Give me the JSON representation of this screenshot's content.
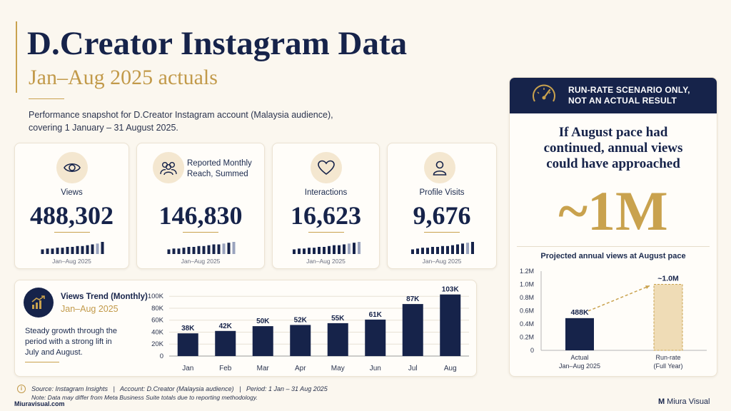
{
  "header": {
    "title": "D.Creator Instagram Data",
    "subtitle": "Jan–Aug 2025 actuals",
    "description": "Performance snapshot for D.Creator Instagram account (Malaysia audience), covering 1 January – 31 August 2025."
  },
  "kpis": [
    {
      "icon": "eye-icon",
      "label": "Views",
      "value": "488,302",
      "period": "Jan–Aug 2025",
      "spark": [
        3,
        4,
        4,
        5,
        5,
        6,
        6,
        7,
        7,
        8,
        9,
        10,
        12
      ]
    },
    {
      "icon": "people-icon",
      "label": "Reported Monthly Reach, Summed",
      "value": "146,830",
      "period": "Jan–Aug 2025",
      "spark": [
        3,
        4,
        4,
        5,
        6,
        6,
        7,
        7,
        8,
        9,
        9,
        10,
        11,
        12
      ]
    },
    {
      "icon": "heart-icon",
      "label": "Interactions",
      "value": "16,623",
      "period": "Jan–Aug 2025",
      "spark": [
        3,
        4,
        4,
        5,
        5,
        6,
        6,
        7,
        8,
        8,
        9,
        10,
        11,
        12
      ]
    },
    {
      "icon": "person-icon",
      "label": "Profile Visits",
      "value": "9,676",
      "period": "Jan–Aug 2025",
      "spark": [
        3,
        4,
        5,
        5,
        6,
        6,
        7,
        7,
        8,
        9,
        10,
        11,
        12
      ]
    }
  ],
  "trend": {
    "title": "Views Trend (Monthly)",
    "period": "Jan–Aug 2025",
    "note": "Steady growth through the period with a strong lift in July and August."
  },
  "scenario": {
    "badge": "RUN-RATE SCENARIO ONLY, NOT AN ACTUAL RESULT",
    "headline": "If August pace had continued, annual views could have approached",
    "big_value": "~1M",
    "chart_title": "Projected annual views at August pace"
  },
  "footer": {
    "source": "Source: Instagram Insights   |   Account: D.Creator (Malaysia audience)   |   Period: 1 Jan – 31 Aug 2025",
    "note": "Note: Data may differ from Meta Business Suite totals due to reporting methodology.",
    "site": "Miuravisual.com",
    "brand_mark": "M",
    "brand_name": "Miura Visual"
  },
  "colors": {
    "navy": "#16234a",
    "gold": "#c9a24e",
    "projected_fill": "#efdcb6",
    "background": "#fbf7ef"
  },
  "chart_data": [
    {
      "type": "bar",
      "title": "",
      "categories": [
        "Jan",
        "Feb",
        "Mar",
        "Apr",
        "May",
        "Jun",
        "Jul",
        "Aug"
      ],
      "values": [
        38,
        42,
        50,
        52,
        55,
        61,
        87,
        103
      ],
      "value_labels": [
        "38K",
        "42K",
        "50K",
        "52K",
        "55K",
        "61K",
        "87K",
        "103K"
      ],
      "yticks": [
        0,
        20,
        40,
        60,
        80,
        100
      ],
      "ytick_labels": [
        "0",
        "20K",
        "40K",
        "60K",
        "80K",
        "100K"
      ],
      "ylim": [
        0,
        105
      ],
      "grid": true,
      "xlabel": "",
      "ylabel": ""
    },
    {
      "type": "bar",
      "title": "Projected annual views at August pace",
      "categories": [
        "Actual\nJan–Aug 2025",
        "Run-rate\n(Full Year)"
      ],
      "values": [
        0.488,
        1.0
      ],
      "value_labels": [
        "488K",
        "~1.0M"
      ],
      "yticks": [
        0,
        0.2,
        0.4,
        0.6,
        0.8,
        1.0,
        1.2
      ],
      "ytick_labels": [
        "0",
        "0.2M",
        "0.4M",
        "0.6M",
        "0.8M",
        "1.0M",
        "1.2M"
      ],
      "ylim": [
        0,
        1.2
      ],
      "grid": false,
      "xlabel": "",
      "ylabel": ""
    }
  ]
}
